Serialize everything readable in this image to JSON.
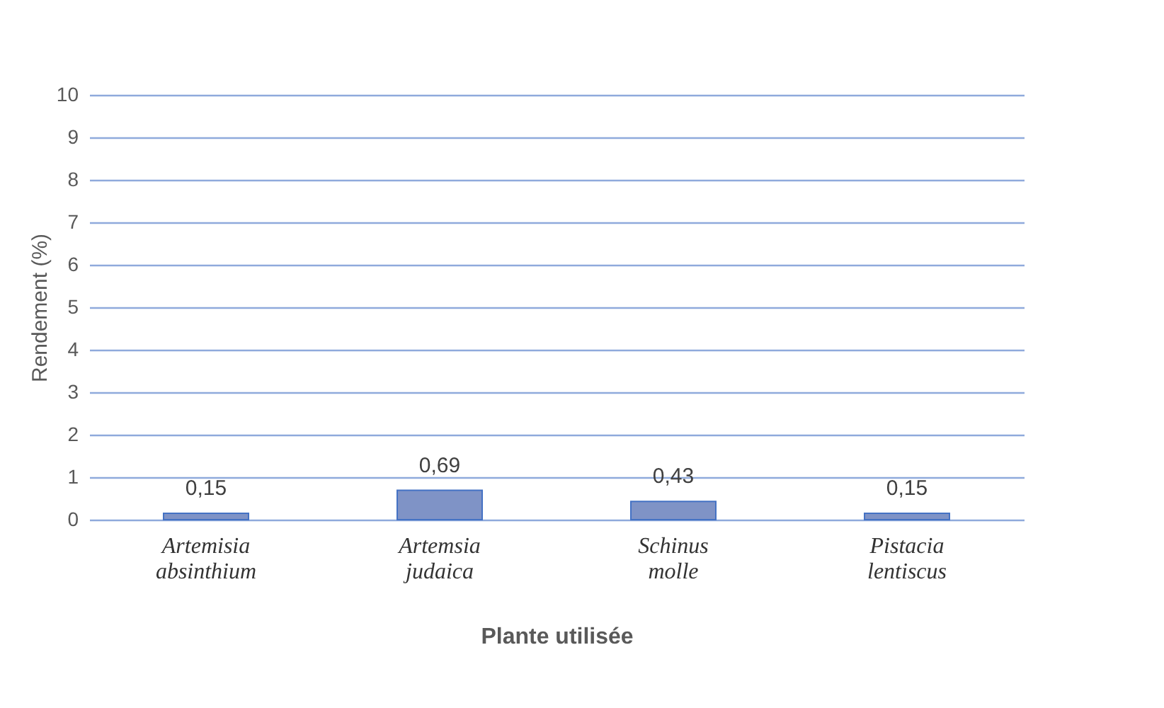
{
  "chart_data": {
    "type": "bar",
    "xlabel": "Plante utilisée",
    "ylabel": "Rendement (%)",
    "categories": [
      "Artemisia absinthium",
      "Artemsia judaica",
      "Schinus molle",
      "Pistacia lentiscus"
    ],
    "values": [
      0.15,
      0.69,
      0.43,
      0.15
    ],
    "value_labels": [
      "0,15",
      "0,69",
      "0,43",
      "0,15"
    ],
    "color": "#7f93c6",
    "ylim": [
      0,
      10
    ],
    "yticks": [
      0,
      1,
      2,
      3,
      4,
      5,
      6,
      7,
      8,
      9,
      10
    ],
    "grid": "y"
  }
}
